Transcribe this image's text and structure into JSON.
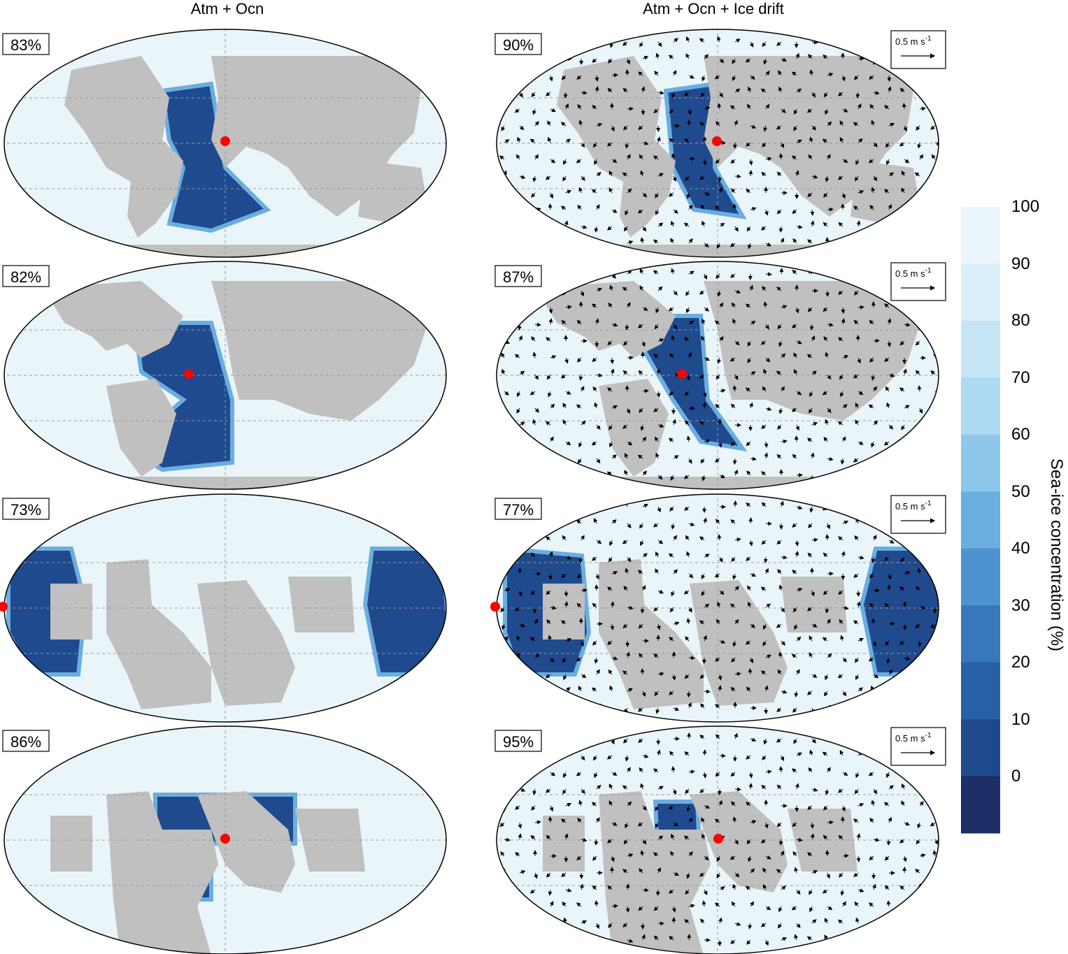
{
  "figure": {
    "columns": [
      "Atm + Ocn",
      "Atm + Ocn + Ice drift"
    ],
    "scale_label": "0.5 m s",
    "scale_exponent": "-1",
    "colors": {
      "land": "#c0c0c0",
      "ice_full": "#eaf5fa",
      "ocean_open": "#1f4a8e",
      "ocean_edge": "#6aaee0",
      "marker": "#ff0000"
    }
  },
  "panels": [
    {
      "id": "a-left",
      "label": "83%",
      "arrows": false,
      "lon": 0
    },
    {
      "id": "a-right",
      "label": "90%",
      "arrows": true,
      "lon": 0
    },
    {
      "id": "b-left",
      "label": "82%",
      "arrows": false,
      "lon": -30
    },
    {
      "id": "b-right",
      "label": "87%",
      "arrows": true,
      "lon": -30
    },
    {
      "id": "c-left",
      "label": "73%",
      "arrows": false,
      "lon": 180
    },
    {
      "id": "c-right",
      "label": "77%",
      "arrows": true,
      "lon": 180
    },
    {
      "id": "d-left",
      "label": "86%",
      "arrows": false,
      "lon": 0
    },
    {
      "id": "d-right",
      "label": "95%",
      "arrows": true,
      "lon": 0
    }
  ],
  "colorbar": {
    "title": "Sea-ice concentration (%)",
    "ticks": [
      "100",
      "90",
      "80",
      "70",
      "60",
      "50",
      "40",
      "30",
      "20",
      "10",
      "0"
    ],
    "colors": [
      "#eaf6fb",
      "#dbeff8",
      "#c6e5f4",
      "#addaf1",
      "#8dc8ea",
      "#6aaee0",
      "#4c93d0",
      "#3778bc",
      "#2760a6",
      "#1e4a8c",
      "#1d2f66"
    ]
  }
}
